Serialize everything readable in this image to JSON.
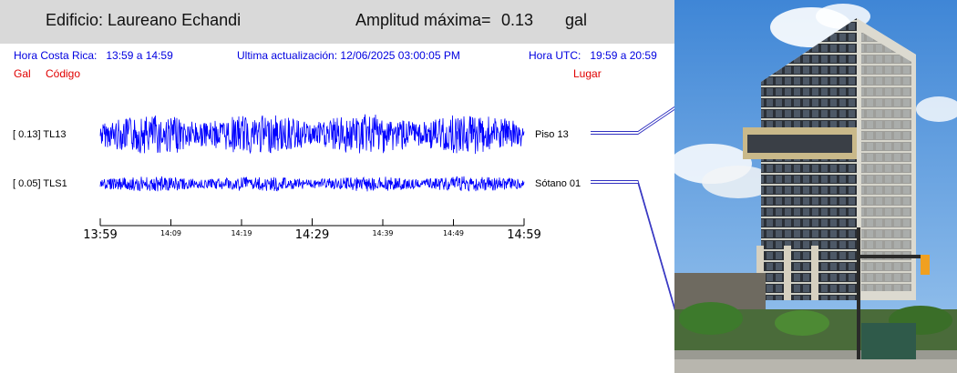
{
  "header": {
    "building": "Edificio: Laureano Echandi",
    "amplitude_label": "Amplitud máxima=",
    "amplitude_value": "0.13",
    "amplitude_unit": "gal"
  },
  "info": {
    "local_time_label": "Hora Costa Rica:",
    "local_time_value": "13:59 a 14:59",
    "last_update_label": "Ultima actualización:",
    "last_update_value": "12/06/2025 03:00:05 PM",
    "utc_label": "Hora UTC:",
    "utc_value": "19:59 a 20:59"
  },
  "legend": {
    "gal": "Gal",
    "code": "Código",
    "place": "Lugar"
  },
  "traces": [
    {
      "label": "[  0.13] TL13",
      "place": "Piso 13",
      "amplitude": 0.13
    },
    {
      "label": "[  0.05] TLS1",
      "place": "Sótano 01",
      "amplitude": 0.05
    }
  ],
  "time_axis": {
    "ticks": [
      "13:59",
      "14:09",
      "14:19",
      "14:29",
      "14:39",
      "14:49",
      "14:59"
    ],
    "major_ticks": [
      "13:59",
      "14:29",
      "14:59"
    ]
  },
  "colors": {
    "header_bg": "#d9d9d9",
    "info_text": "#0000e0",
    "legend_text": "#e00000",
    "waveform": "#0000ff"
  }
}
